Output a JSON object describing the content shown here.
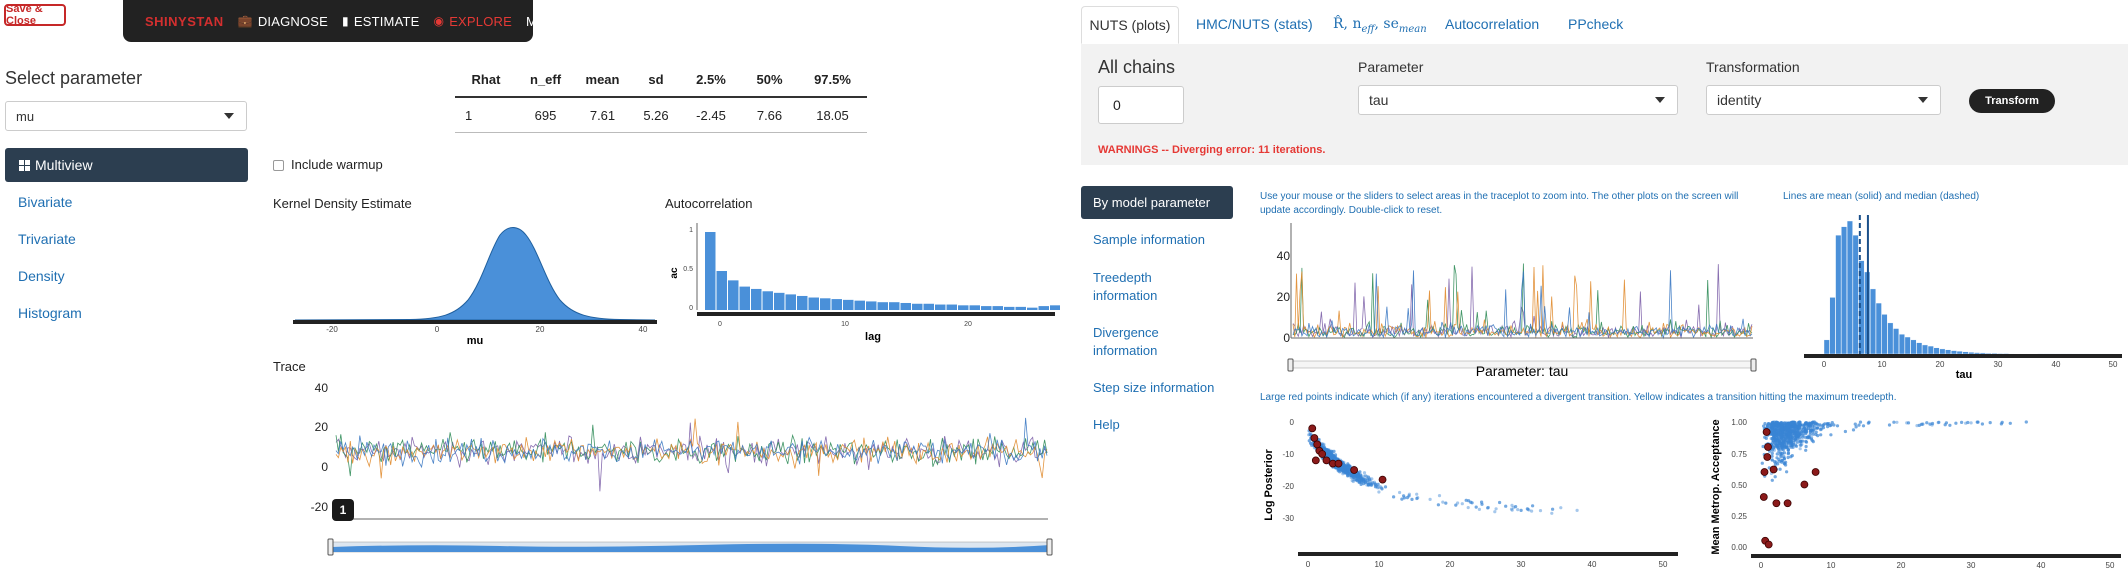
{
  "topbar": {
    "save_close": "Save & Close",
    "brand": "SHINYSTAN",
    "diagnose": "DIAGNOSE",
    "estimate": "ESTIMATE",
    "explore": "EXPLORE",
    "more": "MORE"
  },
  "left": {
    "select_title": "Select parameter",
    "param_value": "mu",
    "nav": [
      {
        "label": "Multiview",
        "active": true
      },
      {
        "label": "Bivariate"
      },
      {
        "label": "Trivariate"
      },
      {
        "label": "Density"
      },
      {
        "label": "Histogram"
      }
    ],
    "stats": {
      "headers": [
        "Rhat",
        "n_eff",
        "mean",
        "sd",
        "2.5%",
        "50%",
        "97.5%"
      ],
      "row": [
        "1",
        "695",
        "7.61",
        "5.26",
        "-2.45",
        "7.66",
        "18.05"
      ]
    },
    "include_warmup": "Include warmup",
    "kde_title": "Kernel Density Estimate",
    "kde_xlabel": "mu",
    "kde_ticks": [
      "-20",
      "0",
      "20",
      "40"
    ],
    "acf_title": "Autocorrelation",
    "acf_xlabel": "lag",
    "acf_ylabel": "ac",
    "acf_xticks": [
      "0",
      "10",
      "20"
    ],
    "acf_yticks": [
      "0",
      "0.5",
      "1"
    ],
    "trace_title": "Trace",
    "trace_yticks": [
      "40",
      "20",
      "0",
      "-20"
    ],
    "chain_badge": "1"
  },
  "right": {
    "tabs": [
      "NUTS (plots)",
      "HMC/NUTS (stats)",
      "R̂, n",
      "Autocorrelation",
      "PPcheck"
    ],
    "tab3_parts": {
      "r": "R̂, n",
      "eff": "eff",
      "se": ", se",
      "mean": "mean"
    },
    "all_chains_label": "All chains",
    "all_chains_value": "0",
    "parameter_label": "Parameter",
    "parameter_value": "tau",
    "transformation_label": "Transformation",
    "transformation_value": "identity",
    "transform_button": "Transform",
    "warning": "WARNINGS -- Diverging error: 11 iterations.",
    "side_nav": [
      {
        "label": "By model parameter",
        "active": true
      },
      {
        "label": "Sample information"
      },
      {
        "label": "Treedepth information"
      },
      {
        "label": "Divergence information"
      },
      {
        "label": "Step size information"
      },
      {
        "label": "Help"
      }
    ],
    "trace_note": "Use your mouse or the sliders to select areas in the traceplot to zoom into. The other plots on the screen will update accordingly. Double-click to reset.",
    "trace_yticks": [
      "40",
      "20",
      "0"
    ],
    "trace_xlabel": "Parameter: tau",
    "hist_note": "Lines are mean (solid) and median (dashed)",
    "hist_xlabel": "tau",
    "hist_yticks": [
      "40",
      "20",
      "0"
    ],
    "hist_xticks": [
      "0",
      "10",
      "20",
      "30",
      "40",
      "50"
    ],
    "scatter_note": "Large red points indicate which (if any) iterations encountered a divergent transition. Yellow indicates a transition hitting the maximum treedepth.",
    "lp_ylabel": "Log Posterior",
    "lp_yticks": [
      "0",
      "-10",
      "-20",
      "-30"
    ],
    "lp_xticks": [
      "0",
      "10",
      "20",
      "30",
      "40",
      "50"
    ],
    "acc_ylabel": "Mean Metrop. Acceptance",
    "acc_yticks": [
      "1.00",
      "0.75",
      "0.50",
      "0.25",
      "0.00"
    ],
    "acc_xticks": [
      "0",
      "10",
      "20",
      "30",
      "40",
      "50"
    ]
  },
  "colors": {
    "navbar": "#222222",
    "accent_blue": "#1f6fb2",
    "plot_blue": "#4a90d9",
    "active_nav": "#2c3e50",
    "warning_red": "#e53935",
    "divergent_red": "#b71c1c"
  },
  "chart_data": [
    {
      "type": "bar",
      "title": "Autocorrelation",
      "xlabel": "lag",
      "ylabel": "ac",
      "x": [
        0,
        1,
        2,
        3,
        4,
        5,
        6,
        7,
        8,
        9,
        10,
        11,
        12,
        13,
        14,
        15,
        16,
        17,
        18,
        19,
        20,
        21,
        22,
        23,
        24,
        25,
        26,
        27,
        28,
        29,
        30
      ],
      "values": [
        1.0,
        0.5,
        0.38,
        0.3,
        0.27,
        0.24,
        0.22,
        0.2,
        0.18,
        0.16,
        0.15,
        0.14,
        0.13,
        0.12,
        0.11,
        0.1,
        0.1,
        0.09,
        0.08,
        0.08,
        0.07,
        0.07,
        0.06,
        0.06,
        0.05,
        0.05,
        0.04,
        0.04,
        0.03,
        0.05,
        0.06
      ]
    },
    {
      "type": "bar",
      "title": "",
      "xlabel": "tau",
      "x": [
        1,
        2,
        3,
        4,
        5,
        6,
        7,
        8,
        9,
        10,
        11,
        12,
        13,
        14,
        15,
        16,
        17,
        18,
        19,
        20,
        21,
        22,
        23,
        24,
        25,
        26,
        27,
        28,
        29,
        30,
        31,
        32,
        33,
        34,
        35,
        36,
        37,
        38,
        39,
        40,
        41,
        42,
        43,
        44,
        45,
        46,
        47,
        48,
        49,
        50
      ],
      "values": [
        5,
        20,
        42,
        45,
        47,
        42,
        33,
        29,
        23,
        18,
        14,
        11,
        9,
        7,
        6,
        5,
        4,
        3.2,
        2.8,
        2.2,
        1.8,
        1.5,
        1.2,
        1,
        0.8,
        0.6,
        0.5,
        0.4,
        0.3,
        0.3,
        0.2,
        0.2,
        0.15,
        0.1,
        0.1,
        0.1,
        0.08,
        0.05,
        0.05,
        0.05,
        0.04,
        0.03,
        0.03,
        0.02,
        0.02,
        0.02,
        0.01,
        0.01,
        0.01,
        0.01
      ],
      "mean": 7.6,
      "median": 6.2
    }
  ]
}
